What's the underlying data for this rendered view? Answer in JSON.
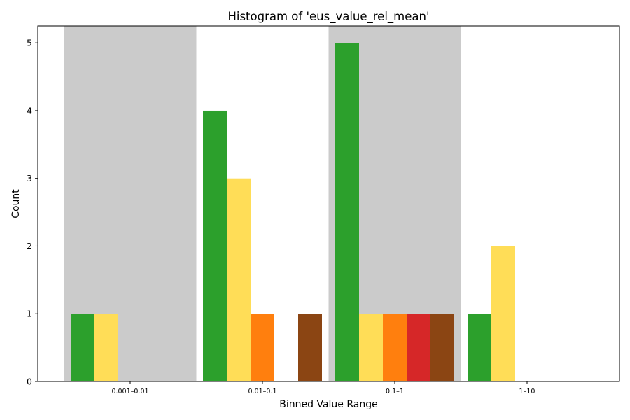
{
  "chart_data": {
    "type": "bar",
    "title": "Histogram of 'eus_value_rel_mean'",
    "xlabel": "Binned Value Range",
    "ylabel": "Count",
    "categories": [
      "0.001–0.01",
      "0.01–0.1",
      "0.1–1",
      "1–10"
    ],
    "ylim": [
      0,
      5.25
    ],
    "yticks": [
      0,
      1,
      2,
      3,
      4,
      5
    ],
    "grid": false,
    "legend": "none",
    "shaded_bands": [
      0,
      2
    ],
    "band_color": "#cbcbcb",
    "series": [
      {
        "color": "#2ca02c",
        "values": [
          1,
          4,
          5,
          1
        ]
      },
      {
        "color": "#ffdd57",
        "values": [
          1,
          3,
          1,
          2
        ]
      },
      {
        "color": "#ff7f0e",
        "values": [
          0,
          1,
          1,
          0
        ]
      },
      {
        "color": "#d62728",
        "values": [
          0,
          0,
          1,
          0
        ]
      },
      {
        "color": "#8b4513",
        "values": [
          0,
          1,
          1,
          0
        ]
      }
    ]
  }
}
